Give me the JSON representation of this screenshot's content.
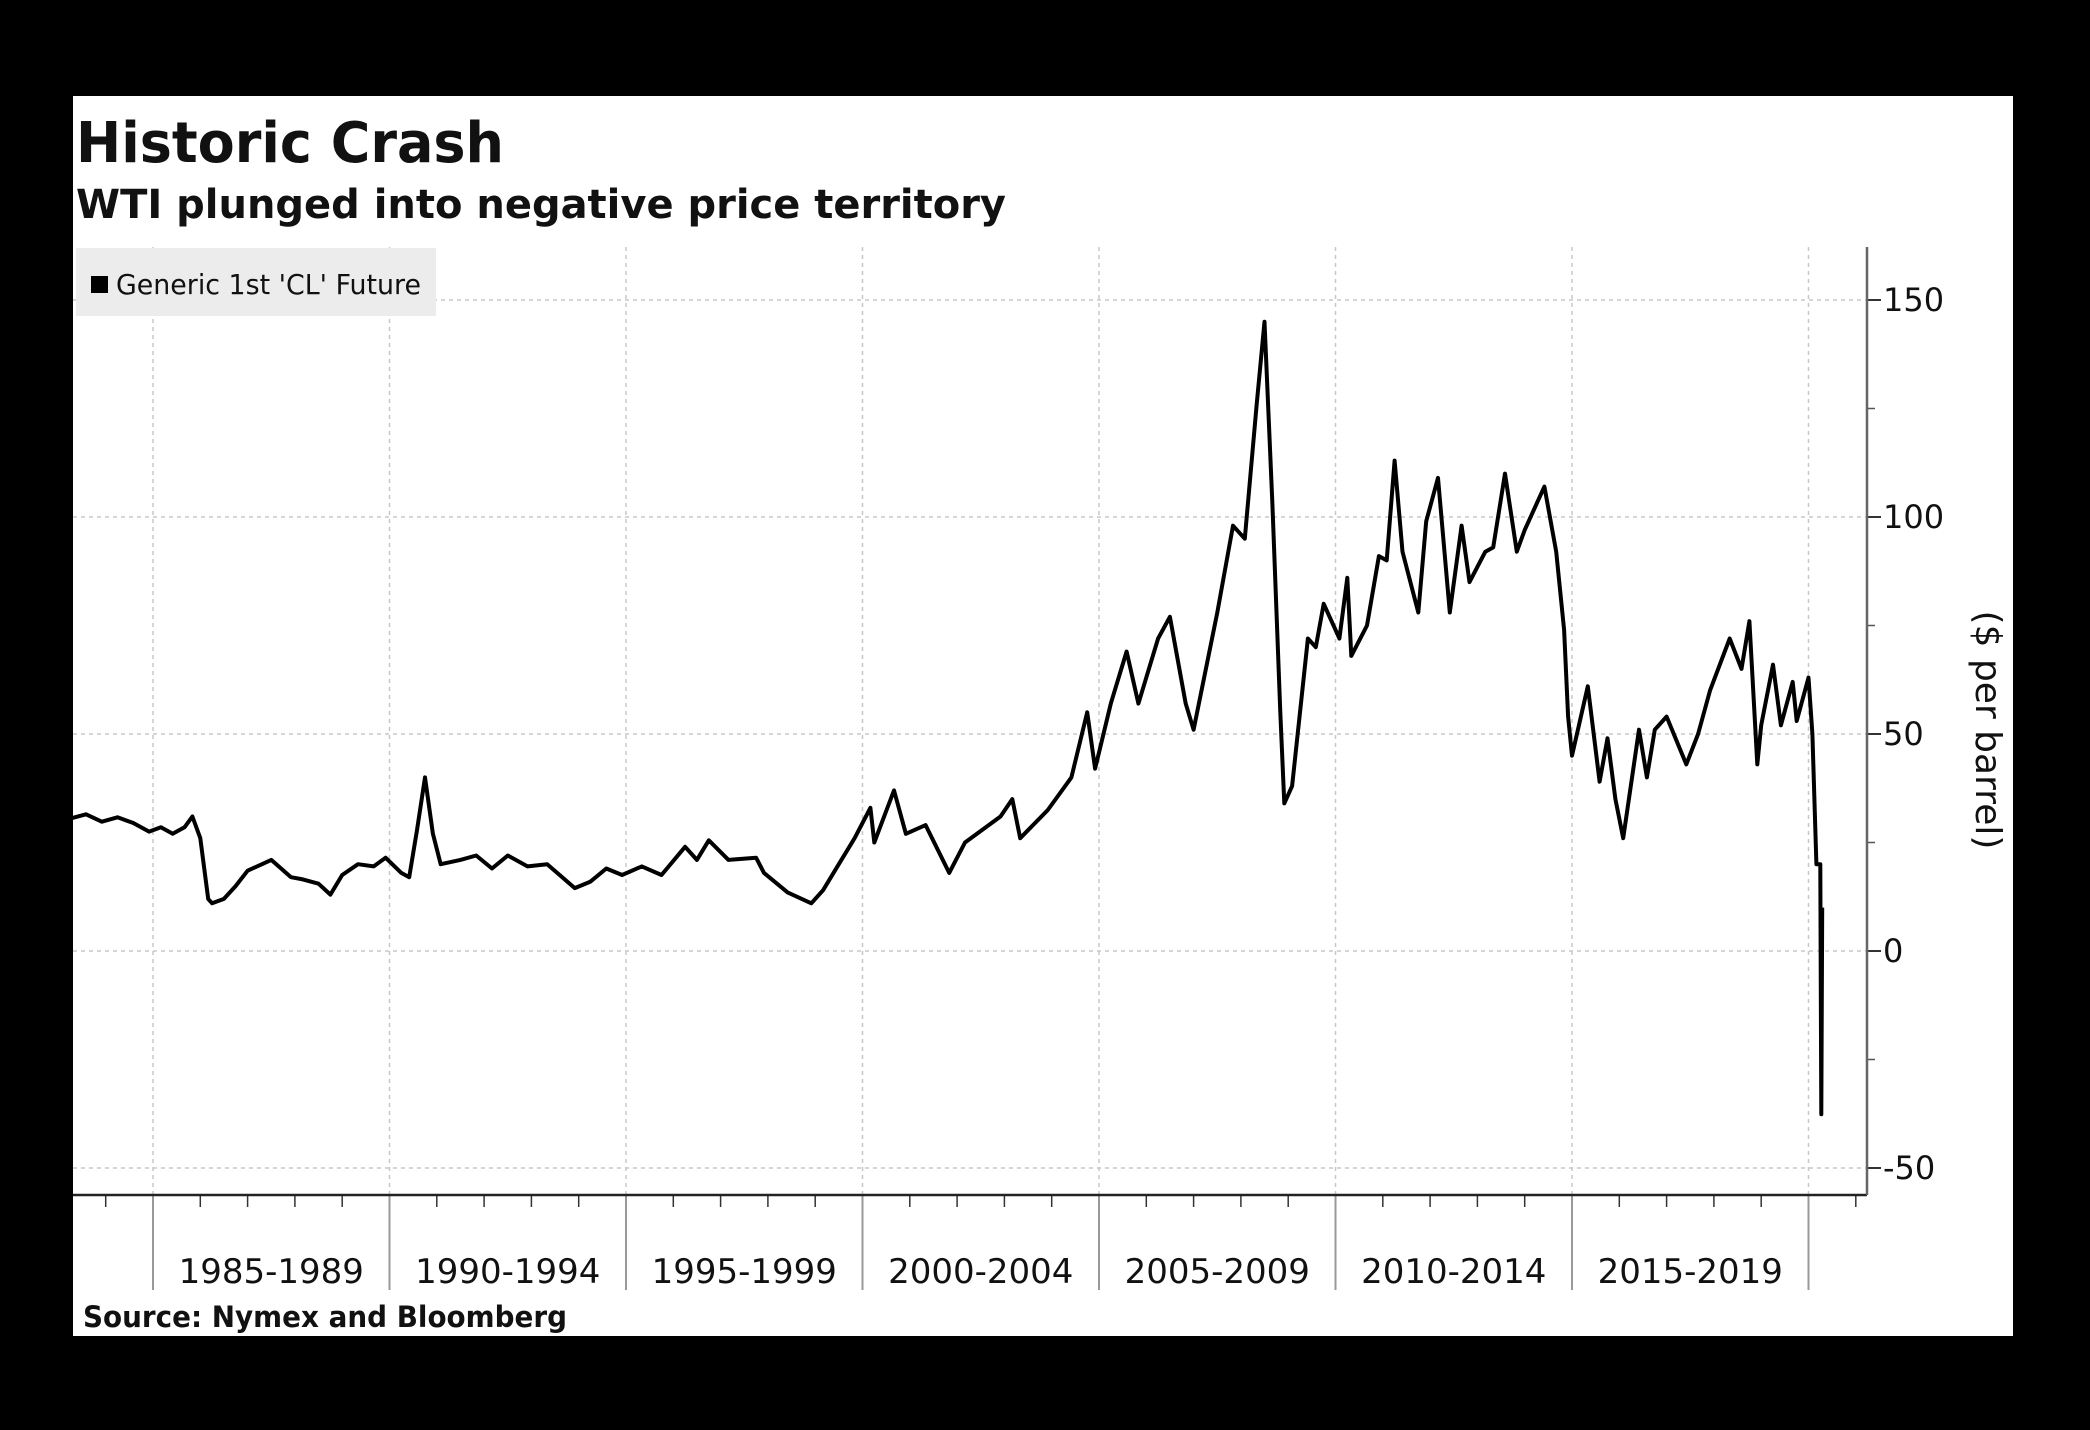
{
  "chart_data": {
    "type": "line",
    "title": "Historic Crash",
    "subtitle": "WTI plunged into negative price territory",
    "legend": {
      "entries": [
        "Generic 1st 'CL' Future"
      ],
      "placement": "top-left"
    },
    "ylabel": "($ per barrel)",
    "xlabel": "",
    "source": "Source: Nymex and Bloomberg",
    "ylim": [
      -55,
      163
    ],
    "yticks": [
      150,
      100,
      50,
      0,
      -50
    ],
    "y_axis_side": "right",
    "x_categories": [
      "1985-1989",
      "1990-1994",
      "1995-1999",
      "2000-2004",
      "2005-2009",
      "2010-2014",
      "2015-2019"
    ],
    "xlim": [
      "1983-04",
      "2020-12"
    ],
    "grid": true,
    "line_color": "#000000",
    "series": [
      {
        "name": "Generic 1st 'CL' Future",
        "points": [
          [
            "1983-04",
            30.5
          ],
          [
            "1983-08",
            31.5
          ],
          [
            "1983-12",
            29.8
          ],
          [
            "1984-04",
            30.8
          ],
          [
            "1984-08",
            29.5
          ],
          [
            "1984-12",
            27.5
          ],
          [
            "1985-03",
            28.5
          ],
          [
            "1985-06",
            27
          ],
          [
            "1985-09",
            28.5
          ],
          [
            "1985-11",
            31
          ],
          [
            "1986-01",
            26
          ],
          [
            "1986-03",
            12
          ],
          [
            "1986-04",
            11
          ],
          [
            "1986-07",
            12
          ],
          [
            "1986-10",
            15
          ],
          [
            "1987-01",
            18.5
          ],
          [
            "1987-07",
            21
          ],
          [
            "1987-12",
            17
          ],
          [
            "1988-03",
            16.5
          ],
          [
            "1988-07",
            15.5
          ],
          [
            "1988-10",
            13
          ],
          [
            "1989-01",
            17.5
          ],
          [
            "1989-05",
            20
          ],
          [
            "1989-09",
            19.5
          ],
          [
            "1989-12",
            21.5
          ],
          [
            "1990-04",
            18
          ],
          [
            "1990-06",
            17
          ],
          [
            "1990-08",
            28
          ],
          [
            "1990-10",
            40
          ],
          [
            "1990-12",
            27
          ],
          [
            "1991-02",
            20
          ],
          [
            "1991-07",
            21
          ],
          [
            "1991-11",
            22
          ],
          [
            "1992-03",
            19
          ],
          [
            "1992-07",
            22
          ],
          [
            "1992-12",
            19.5
          ],
          [
            "1993-05",
            20
          ],
          [
            "1993-12",
            14.5
          ],
          [
            "1994-04",
            16
          ],
          [
            "1994-08",
            19
          ],
          [
            "1994-12",
            17.5
          ],
          [
            "1995-05",
            19.5
          ],
          [
            "1995-10",
            17.5
          ],
          [
            "1996-04",
            24
          ],
          [
            "1996-07",
            21
          ],
          [
            "1996-10",
            25.5
          ],
          [
            "1997-03",
            21
          ],
          [
            "1997-10",
            21.5
          ],
          [
            "1997-12",
            18
          ],
          [
            "1998-06",
            13.5
          ],
          [
            "1998-12",
            11
          ],
          [
            "1999-03",
            14
          ],
          [
            "1999-07",
            20
          ],
          [
            "1999-11",
            26
          ],
          [
            "2000-03",
            33
          ],
          [
            "2000-04",
            25
          ],
          [
            "2000-09",
            37
          ],
          [
            "2000-12",
            27
          ],
          [
            "2001-05",
            29
          ],
          [
            "2001-11",
            18
          ],
          [
            "2002-03",
            25
          ],
          [
            "2002-12",
            31
          ],
          [
            "2003-03",
            35
          ],
          [
            "2003-05",
            26
          ],
          [
            "2003-12",
            32.5
          ],
          [
            "2004-06",
            40
          ],
          [
            "2004-10",
            55
          ],
          [
            "2004-12",
            42
          ],
          [
            "2005-04",
            57
          ],
          [
            "2005-08",
            69
          ],
          [
            "2005-11",
            57
          ],
          [
            "2006-04",
            72
          ],
          [
            "2006-07",
            77
          ],
          [
            "2006-11",
            57
          ],
          [
            "2007-01",
            51
          ],
          [
            "2007-07",
            78
          ],
          [
            "2007-11",
            98
          ],
          [
            "2008-02",
            95
          ],
          [
            "2008-05",
            126
          ],
          [
            "2008-07",
            145
          ],
          [
            "2008-09",
            103
          ],
          [
            "2008-11",
            55
          ],
          [
            "2008-12",
            34
          ],
          [
            "2009-02",
            38
          ],
          [
            "2009-06",
            72
          ],
          [
            "2009-08",
            70
          ],
          [
            "2009-10",
            80
          ],
          [
            "2010-02",
            72
          ],
          [
            "2010-04",
            86
          ],
          [
            "2010-05",
            68
          ],
          [
            "2010-09",
            75
          ],
          [
            "2010-12",
            91
          ],
          [
            "2011-02",
            90
          ],
          [
            "2011-04",
            113
          ],
          [
            "2011-06",
            92
          ],
          [
            "2011-10",
            78
          ],
          [
            "2011-12",
            99
          ],
          [
            "2012-03",
            109
          ],
          [
            "2012-06",
            78
          ],
          [
            "2012-09",
            98
          ],
          [
            "2012-11",
            85
          ],
          [
            "2013-03",
            92
          ],
          [
            "2013-05",
            93
          ],
          [
            "2013-08",
            110
          ],
          [
            "2013-11",
            92
          ],
          [
            "2014-01",
            97
          ],
          [
            "2014-06",
            107
          ],
          [
            "2014-09",
            92
          ],
          [
            "2014-11",
            74
          ],
          [
            "2014-12",
            54
          ],
          [
            "2015-01",
            45
          ],
          [
            "2015-05",
            61
          ],
          [
            "2015-08",
            39
          ],
          [
            "2015-10",
            49
          ],
          [
            "2015-12",
            35
          ],
          [
            "2016-02",
            26
          ],
          [
            "2016-06",
            51
          ],
          [
            "2016-08",
            40
          ],
          [
            "2016-10",
            51
          ],
          [
            "2017-01",
            54
          ],
          [
            "2017-06",
            43
          ],
          [
            "2017-09",
            50
          ],
          [
            "2017-12",
            60
          ],
          [
            "2018-05",
            72
          ],
          [
            "2018-08",
            65
          ],
          [
            "2018-10",
            76
          ],
          [
            "2018-12",
            43
          ],
          [
            "2019-01",
            52
          ],
          [
            "2019-04",
            66
          ],
          [
            "2019-06",
            52
          ],
          [
            "2019-09",
            62
          ],
          [
            "2019-10",
            53
          ],
          [
            "2020-01",
            63
          ],
          [
            "2020-02",
            50
          ],
          [
            "2020-03",
            20
          ],
          [
            "2020-04",
            20
          ],
          [
            "2020-04",
            -37.63
          ],
          [
            "2020-04",
            10
          ]
        ]
      }
    ]
  }
}
